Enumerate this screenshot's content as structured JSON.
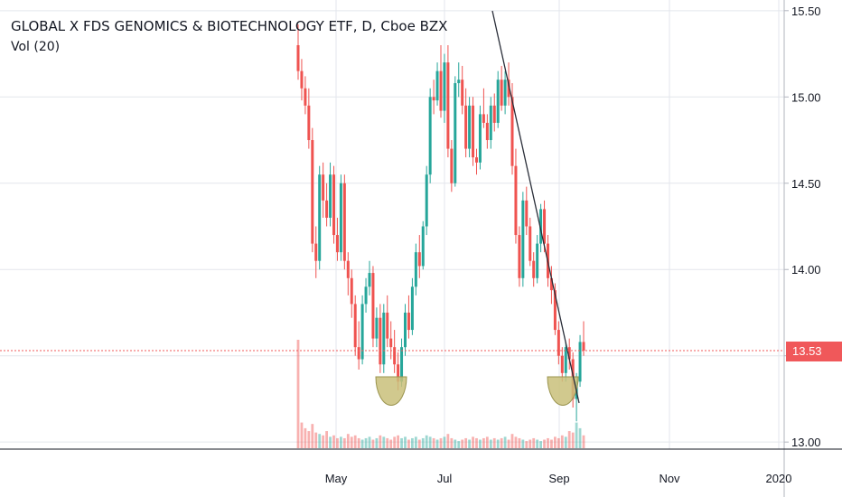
{
  "chart_data": {
    "type": "candlestick",
    "title": "GLOBAL X FDS GENOMICS & BIOTECHNOLOGY ETF, D, Cboe BZX",
    "indicator": "Vol (20)",
    "y_ticks": [
      "15.50",
      "15.00",
      "14.50",
      "14.00",
      "13.50",
      "13.00"
    ],
    "y_tick_values": [
      15.5,
      15.0,
      14.5,
      14.0,
      13.5,
      13.0
    ],
    "ylim": [
      12.98,
      15.52
    ],
    "x_ticks": [
      "May",
      "Jul",
      "Sep",
      "Nov",
      "2020"
    ],
    "last_price": "13.53",
    "last_price_value": 13.53,
    "colors": {
      "up": "#26a69a",
      "down": "#ef5350",
      "trendline": "#2a2e39",
      "marker": "#c9c07a"
    },
    "candles": [
      [
        15.3,
        15.42,
        15.1,
        15.15
      ],
      [
        15.15,
        15.22,
        14.98,
        15.05
      ],
      [
        15.05,
        15.12,
        14.9,
        14.95
      ],
      [
        14.95,
        15.05,
        14.7,
        14.75
      ],
      [
        14.75,
        14.82,
        14.1,
        14.15
      ],
      [
        14.15,
        14.25,
        13.95,
        14.05
      ],
      [
        14.05,
        14.6,
        14.0,
        14.55
      ],
      [
        14.55,
        14.62,
        14.3,
        14.4
      ],
      [
        14.4,
        14.5,
        14.25,
        14.3
      ],
      [
        14.3,
        14.62,
        14.25,
        14.55
      ],
      [
        14.55,
        14.6,
        14.15,
        14.2
      ],
      [
        14.2,
        14.3,
        14.05,
        14.1
      ],
      [
        14.1,
        14.55,
        14.05,
        14.5
      ],
      [
        14.5,
        14.55,
        14.0,
        14.05
      ],
      [
        14.05,
        14.1,
        13.85,
        13.95
      ],
      [
        13.95,
        14.0,
        13.72,
        13.8
      ],
      [
        13.8,
        13.85,
        13.5,
        13.55
      ],
      [
        13.55,
        13.7,
        13.42,
        13.48
      ],
      [
        13.48,
        13.85,
        13.45,
        13.8
      ],
      [
        13.8,
        13.95,
        13.75,
        13.9
      ],
      [
        13.9,
        14.05,
        13.85,
        13.98
      ],
      [
        13.98,
        14.02,
        13.55,
        13.6
      ],
      [
        13.6,
        13.78,
        13.55,
        13.72
      ],
      [
        13.72,
        13.8,
        13.4,
        13.45
      ],
      [
        13.45,
        13.8,
        13.4,
        13.75
      ],
      [
        13.75,
        13.85,
        13.55,
        13.6
      ],
      [
        13.6,
        13.7,
        13.48,
        13.55
      ],
      [
        13.55,
        13.65,
        13.4,
        13.45
      ],
      [
        13.45,
        13.52,
        13.3,
        13.35
      ],
      [
        13.35,
        13.6,
        13.32,
        13.55
      ],
      [
        13.55,
        13.8,
        13.5,
        13.75
      ],
      [
        13.75,
        13.85,
        13.6,
        13.65
      ],
      [
        13.65,
        13.95,
        13.62,
        13.9
      ],
      [
        13.9,
        14.15,
        13.85,
        14.1
      ],
      [
        14.1,
        14.2,
        13.95,
        14.02
      ],
      [
        14.02,
        14.28,
        14.0,
        14.25
      ],
      [
        14.25,
        14.6,
        14.2,
        14.55
      ],
      [
        14.55,
        15.05,
        14.5,
        15.0
      ],
      [
        15.0,
        15.1,
        14.9,
        14.98
      ],
      [
        14.98,
        15.2,
        14.95,
        15.15
      ],
      [
        15.15,
        15.3,
        14.88,
        14.92
      ],
      [
        14.92,
        15.25,
        14.85,
        15.2
      ],
      [
        15.2,
        15.3,
        14.65,
        14.7
      ],
      [
        14.7,
        14.75,
        14.45,
        14.5
      ],
      [
        14.5,
        15.12,
        14.48,
        15.08
      ],
      [
        15.08,
        15.2,
        15.0,
        15.1
      ],
      [
        15.1,
        15.18,
        14.9,
        14.95
      ],
      [
        14.95,
        15.05,
        14.65,
        14.7
      ],
      [
        14.7,
        15.0,
        14.65,
        14.95
      ],
      [
        14.95,
        15.0,
        14.6,
        14.65
      ],
      [
        14.65,
        14.7,
        14.55,
        14.62
      ],
      [
        14.62,
        14.95,
        14.58,
        14.9
      ],
      [
        14.9,
        15.05,
        14.82,
        14.85
      ],
      [
        14.85,
        14.9,
        14.7,
        14.75
      ],
      [
        14.75,
        15.0,
        14.7,
        14.95
      ],
      [
        14.95,
        15.02,
        14.8,
        14.85
      ],
      [
        14.85,
        15.15,
        14.82,
        15.1
      ],
      [
        15.1,
        15.18,
        14.92,
        14.95
      ],
      [
        14.95,
        15.15,
        14.9,
        15.1
      ],
      [
        15.1,
        15.2,
        14.95,
        15.0
      ],
      [
        15.0,
        15.08,
        14.55,
        14.6
      ],
      [
        14.6,
        14.7,
        14.15,
        14.2
      ],
      [
        14.2,
        14.25,
        13.9,
        13.95
      ],
      [
        13.95,
        14.45,
        13.9,
        14.4
      ],
      [
        14.4,
        14.48,
        14.2,
        14.25
      ],
      [
        14.25,
        14.3,
        14.02,
        14.05
      ],
      [
        14.05,
        14.1,
        13.9,
        13.95
      ],
      [
        13.95,
        14.2,
        13.92,
        14.15
      ],
      [
        14.15,
        14.38,
        14.1,
        14.35
      ],
      [
        14.35,
        14.4,
        14.1,
        14.15
      ],
      [
        14.15,
        14.2,
        13.9,
        13.95
      ],
      [
        13.95,
        14.02,
        13.8,
        13.88
      ],
      [
        13.88,
        13.92,
        13.62,
        13.65
      ],
      [
        13.65,
        13.7,
        13.45,
        13.5
      ],
      [
        13.5,
        13.55,
        13.35,
        13.4
      ],
      [
        13.4,
        13.58,
        13.35,
        13.55
      ],
      [
        13.55,
        13.6,
        13.42,
        13.48
      ],
      [
        13.48,
        13.52,
        13.2,
        13.25
      ],
      [
        13.25,
        13.4,
        13.12,
        13.35
      ],
      [
        13.35,
        13.62,
        13.32,
        13.58
      ],
      [
        13.58,
        13.7,
        13.5,
        13.53
      ]
    ],
    "volume_peak": 380000,
    "volumes": [
      380000,
      90000,
      70000,
      60000,
      85000,
      55000,
      50000,
      45000,
      60000,
      40000,
      45000,
      35000,
      40000,
      35000,
      50000,
      40000,
      45000,
      35000,
      30000,
      35000,
      40000,
      30000,
      35000,
      45000,
      40000,
      35000,
      30000,
      40000,
      45000,
      35000,
      40000,
      30000,
      35000,
      40000,
      30000,
      35000,
      45000,
      40000,
      35000,
      30000,
      35000,
      40000,
      50000,
      35000,
      30000,
      25000,
      30000,
      35000,
      30000,
      40000,
      35000,
      30000,
      35000,
      40000,
      30000,
      35000,
      30000,
      35000,
      40000,
      30000,
      50000,
      40000,
      35000,
      30000,
      25000,
      30000,
      35000,
      30000,
      25000,
      30000,
      35000,
      30000,
      40000,
      35000,
      45000,
      40000,
      60000,
      55000,
      90000,
      70000,
      45000
    ]
  }
}
